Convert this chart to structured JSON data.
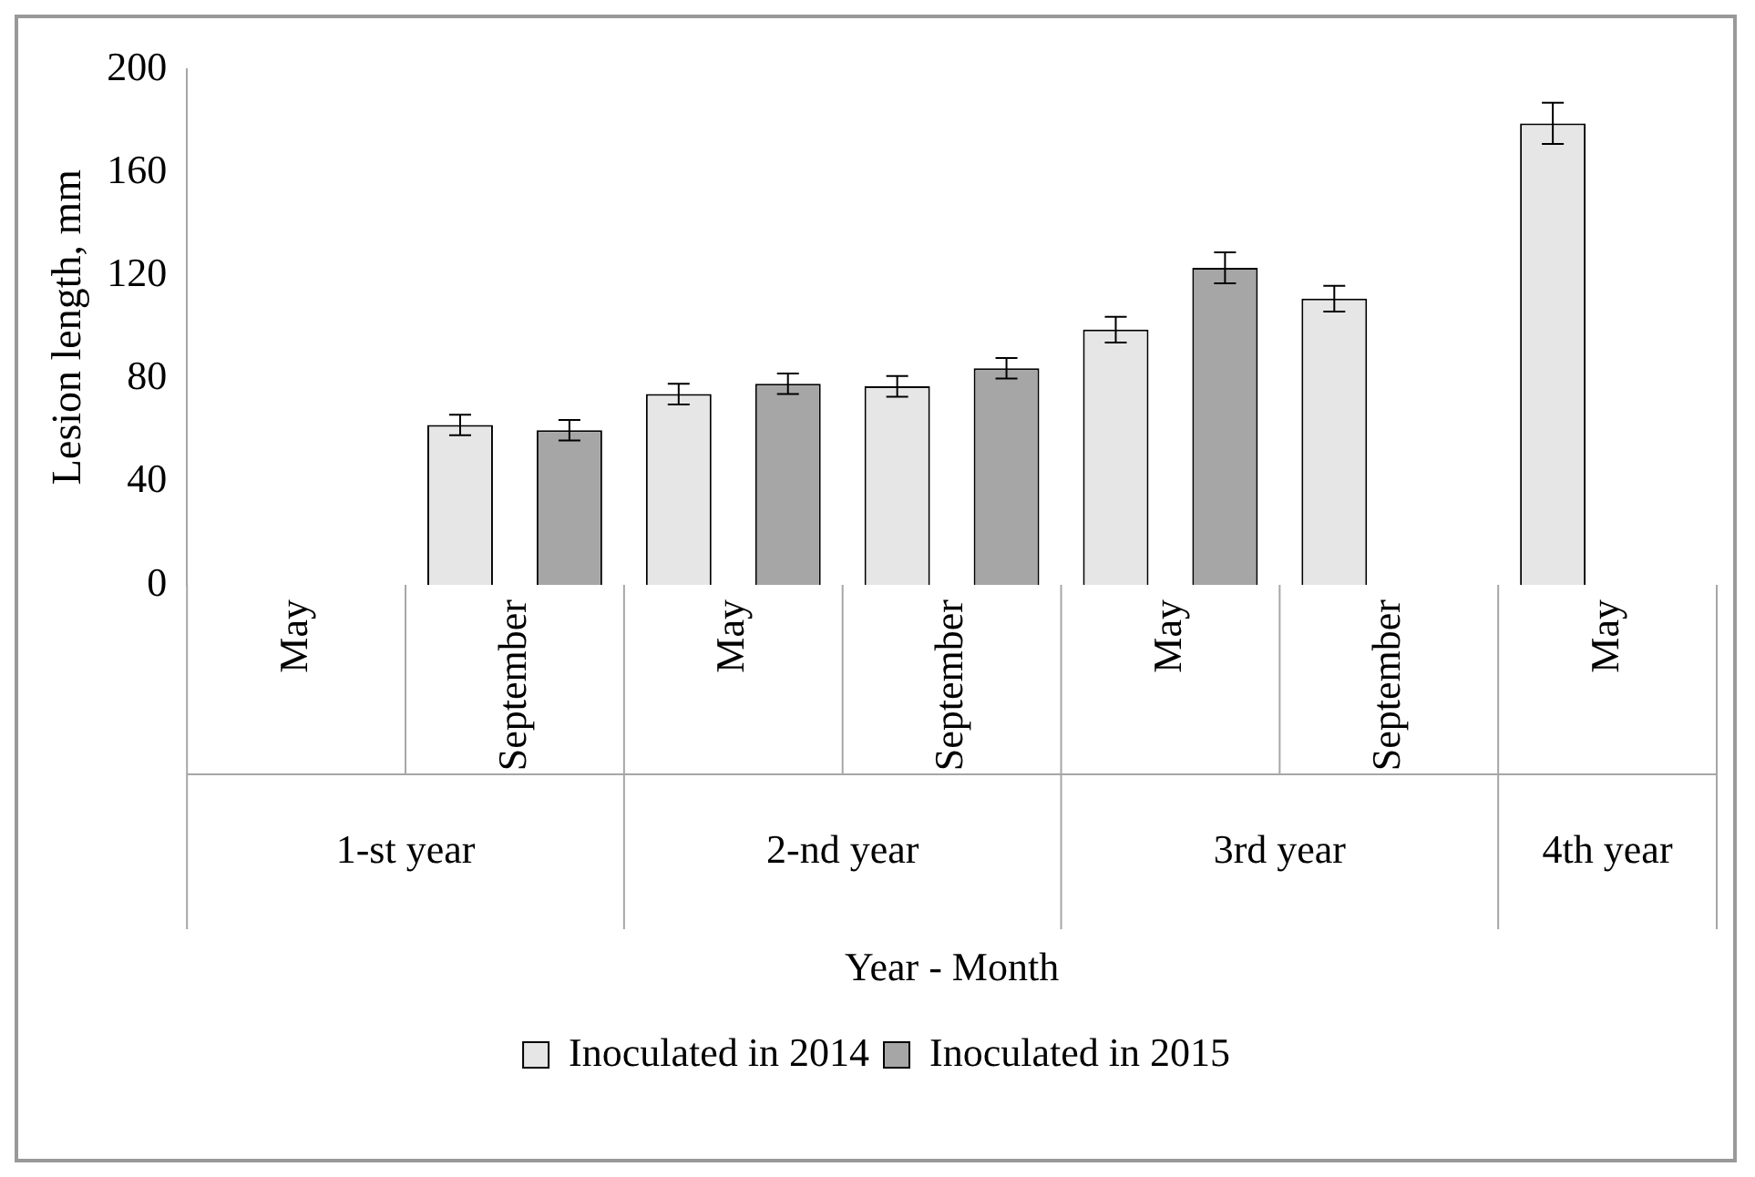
{
  "chart_data": {
    "type": "bar",
    "xlabel": "Year - Month",
    "ylabel": "Lesion length, mm",
    "categories": [
      "May",
      "September",
      "May",
      "September",
      "May",
      "September",
      "May"
    ],
    "annotations": [
      "1-st year",
      "2-nd year",
      "3rd year",
      "4th year"
    ],
    "series": [
      {
        "name": "Inoculated in 2014",
        "color": "#e6e6e6",
        "values": [
          null,
          62,
          74,
          77,
          99,
          111,
          179
        ],
        "errors": [
          null,
          4,
          4,
          4,
          5,
          5,
          8
        ]
      },
      {
        "name": "Inoculated in 2015",
        "color": "#a6a6a6",
        "values": [
          null,
          60,
          78,
          84,
          123,
          null,
          null
        ],
        "errors": [
          null,
          4,
          4,
          4,
          6,
          null,
          null
        ]
      }
    ],
    "ylim": [
      0,
      200
    ],
    "yticks": [
      0,
      40,
      80,
      120,
      160,
      200
    ],
    "grid": false,
    "legend": "bottom"
  }
}
